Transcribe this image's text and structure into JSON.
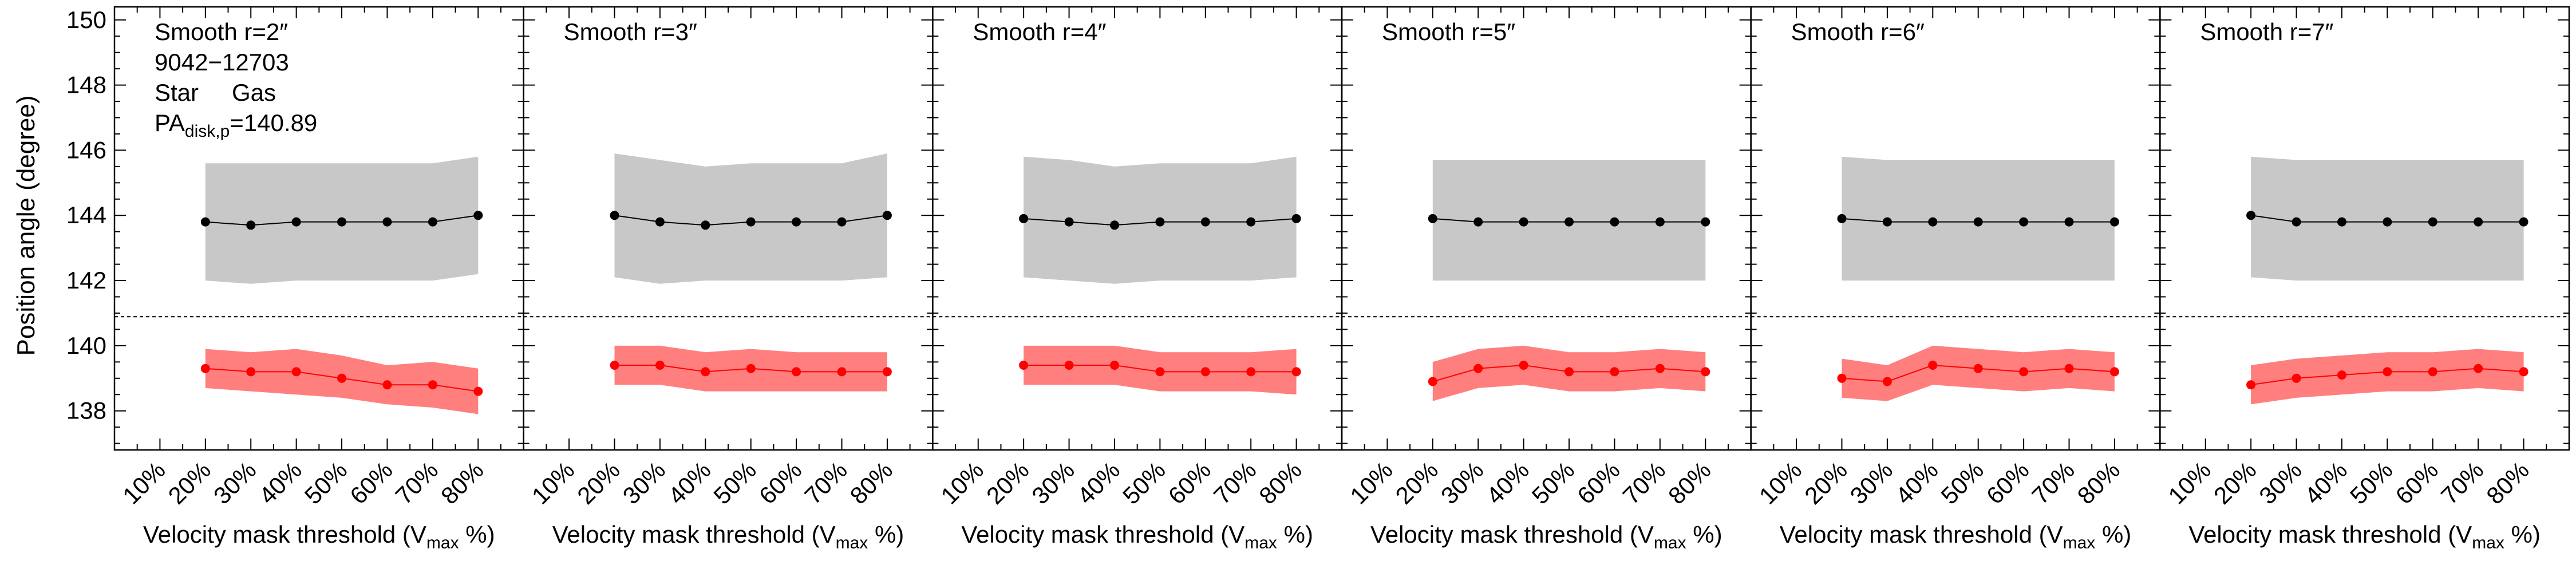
{
  "figure": {
    "ylabel": "Position angle (degree)",
    "xlabel_main": "Velocity mask threshold (V",
    "xlabel_sub": "max",
    "xlabel_tail": " %)",
    "legend": {
      "id_text": "9042−12703",
      "star_label": "Star",
      "gas_label": "Gas",
      "pa_main": "PA",
      "pa_sub": "disk,p",
      "pa_value": "=140.89"
    },
    "colors": {
      "star_band": "#c8c8c8",
      "star_line": "#000000",
      "gas_band": "#ff7f7f",
      "gas_line": "#ff0000",
      "gas_text": "#ff0000",
      "reference_line": "#000000"
    }
  },
  "chart_data": [
    {
      "type": "line",
      "title": "Smooth r=2″",
      "x_tick_labels": [
        "10%",
        "20%",
        "30%",
        "40%",
        "50%",
        "60%",
        "70%",
        "80%"
      ],
      "x": [
        20,
        30,
        40,
        50,
        60,
        70,
        80
      ],
      "xlim": [
        0,
        90
      ],
      "ylim": [
        136.8,
        150.4
      ],
      "y_ticks": [
        138,
        140,
        142,
        144,
        146,
        148,
        150
      ],
      "reference_line": 140.89,
      "series": [
        {
          "name": "Star",
          "values": [
            143.8,
            143.7,
            143.8,
            143.8,
            143.8,
            143.8,
            144.0
          ],
          "band_low": [
            142.0,
            141.9,
            142.0,
            142.0,
            142.0,
            142.0,
            142.2
          ],
          "band_high": [
            145.6,
            145.6,
            145.6,
            145.6,
            145.6,
            145.6,
            145.8
          ]
        },
        {
          "name": "Gas",
          "values": [
            139.3,
            139.2,
            139.2,
            139.0,
            138.8,
            138.8,
            138.6
          ],
          "band_low": [
            138.7,
            138.6,
            138.5,
            138.4,
            138.2,
            138.1,
            137.9
          ],
          "band_high": [
            139.9,
            139.8,
            139.9,
            139.7,
            139.4,
            139.5,
            139.3
          ]
        }
      ]
    },
    {
      "type": "line",
      "title": "Smooth r=3″",
      "x_tick_labels": [
        "10%",
        "20%",
        "30%",
        "40%",
        "50%",
        "60%",
        "70%",
        "80%"
      ],
      "x": [
        20,
        30,
        40,
        50,
        60,
        70,
        80
      ],
      "xlim": [
        0,
        90
      ],
      "ylim": [
        136.8,
        150.4
      ],
      "y_ticks": [
        138,
        140,
        142,
        144,
        146,
        148,
        150
      ],
      "reference_line": 140.89,
      "series": [
        {
          "name": "Star",
          "values": [
            144.0,
            143.8,
            143.7,
            143.8,
            143.8,
            143.8,
            144.0
          ],
          "band_low": [
            142.1,
            141.9,
            142.0,
            142.0,
            142.0,
            142.0,
            142.1
          ],
          "band_high": [
            145.9,
            145.7,
            145.5,
            145.6,
            145.6,
            145.6,
            145.9
          ]
        },
        {
          "name": "Gas",
          "values": [
            139.4,
            139.4,
            139.2,
            139.3,
            139.2,
            139.2,
            139.2
          ],
          "band_low": [
            138.8,
            138.8,
            138.6,
            138.6,
            138.6,
            138.6,
            138.6
          ],
          "band_high": [
            140.0,
            140.0,
            139.8,
            139.9,
            139.8,
            139.8,
            139.8
          ]
        }
      ]
    },
    {
      "type": "line",
      "title": "Smooth r=4″",
      "x_tick_labels": [
        "10%",
        "20%",
        "30%",
        "40%",
        "50%",
        "60%",
        "70%",
        "80%"
      ],
      "x": [
        20,
        30,
        40,
        50,
        60,
        70,
        80
      ],
      "xlim": [
        0,
        90
      ],
      "ylim": [
        136.8,
        150.4
      ],
      "y_ticks": [
        138,
        140,
        142,
        144,
        146,
        148,
        150
      ],
      "reference_line": 140.89,
      "series": [
        {
          "name": "Star",
          "values": [
            143.9,
            143.8,
            143.7,
            143.8,
            143.8,
            143.8,
            143.9
          ],
          "band_low": [
            142.1,
            142.0,
            141.9,
            142.0,
            142.0,
            142.0,
            142.1
          ],
          "band_high": [
            145.8,
            145.7,
            145.5,
            145.6,
            145.6,
            145.6,
            145.8
          ]
        },
        {
          "name": "Gas",
          "values": [
            139.4,
            139.4,
            139.4,
            139.2,
            139.2,
            139.2,
            139.2
          ],
          "band_low": [
            138.8,
            138.8,
            138.8,
            138.6,
            138.6,
            138.6,
            138.5
          ],
          "band_high": [
            140.0,
            140.0,
            140.0,
            139.8,
            139.8,
            139.8,
            139.9
          ]
        }
      ]
    },
    {
      "type": "line",
      "title": "Smooth r=5″",
      "x_tick_labels": [
        "10%",
        "20%",
        "30%",
        "40%",
        "50%",
        "60%",
        "70%",
        "80%"
      ],
      "x": [
        20,
        30,
        40,
        50,
        60,
        70,
        80
      ],
      "xlim": [
        0,
        90
      ],
      "ylim": [
        136.8,
        150.4
      ],
      "y_ticks": [
        138,
        140,
        142,
        144,
        146,
        148,
        150
      ],
      "reference_line": 140.89,
      "series": [
        {
          "name": "Star",
          "values": [
            143.9,
            143.8,
            143.8,
            143.8,
            143.8,
            143.8,
            143.8
          ],
          "band_low": [
            142.0,
            142.0,
            142.0,
            142.0,
            142.0,
            142.0,
            142.0
          ],
          "band_high": [
            145.7,
            145.7,
            145.7,
            145.7,
            145.7,
            145.7,
            145.7
          ]
        },
        {
          "name": "Gas",
          "values": [
            138.9,
            139.3,
            139.4,
            139.2,
            139.2,
            139.3,
            139.2
          ],
          "band_low": [
            138.3,
            138.7,
            138.8,
            138.6,
            138.6,
            138.7,
            138.6
          ],
          "band_high": [
            139.5,
            139.9,
            140.0,
            139.8,
            139.8,
            139.9,
            139.8
          ]
        }
      ]
    },
    {
      "type": "line",
      "title": "Smooth r=6″",
      "x_tick_labels": [
        "10%",
        "20%",
        "30%",
        "40%",
        "50%",
        "60%",
        "70%",
        "80%"
      ],
      "x": [
        20,
        30,
        40,
        50,
        60,
        70,
        80
      ],
      "xlim": [
        0,
        90
      ],
      "ylim": [
        136.8,
        150.4
      ],
      "y_ticks": [
        138,
        140,
        142,
        144,
        146,
        148,
        150
      ],
      "reference_line": 140.89,
      "series": [
        {
          "name": "Star",
          "values": [
            143.9,
            143.8,
            143.8,
            143.8,
            143.8,
            143.8,
            143.8
          ],
          "band_low": [
            142.0,
            142.0,
            142.0,
            142.0,
            142.0,
            142.0,
            142.0
          ],
          "band_high": [
            145.8,
            145.7,
            145.7,
            145.7,
            145.7,
            145.7,
            145.7
          ]
        },
        {
          "name": "Gas",
          "values": [
            139.0,
            138.9,
            139.4,
            139.3,
            139.2,
            139.3,
            139.2
          ],
          "band_low": [
            138.4,
            138.3,
            138.8,
            138.7,
            138.6,
            138.7,
            138.6
          ],
          "band_high": [
            139.6,
            139.4,
            140.0,
            139.9,
            139.8,
            139.9,
            139.8
          ]
        }
      ]
    },
    {
      "type": "line",
      "title": "Smooth r=7″",
      "x_tick_labels": [
        "10%",
        "20%",
        "30%",
        "40%",
        "50%",
        "60%",
        "70%",
        "80%"
      ],
      "x": [
        20,
        30,
        40,
        50,
        60,
        70,
        80
      ],
      "xlim": [
        0,
        90
      ],
      "ylim": [
        136.8,
        150.4
      ],
      "y_ticks": [
        138,
        140,
        142,
        144,
        146,
        148,
        150
      ],
      "reference_line": 140.89,
      "series": [
        {
          "name": "Star",
          "values": [
            144.0,
            143.8,
            143.8,
            143.8,
            143.8,
            143.8,
            143.8
          ],
          "band_low": [
            142.1,
            142.0,
            142.0,
            142.0,
            142.0,
            142.0,
            142.0
          ],
          "band_high": [
            145.8,
            145.7,
            145.7,
            145.7,
            145.7,
            145.7,
            145.7
          ]
        },
        {
          "name": "Gas",
          "values": [
            138.8,
            139.0,
            139.1,
            139.2,
            139.2,
            139.3,
            139.2
          ],
          "band_low": [
            138.2,
            138.4,
            138.5,
            138.6,
            138.6,
            138.7,
            138.6
          ],
          "band_high": [
            139.4,
            139.6,
            139.7,
            139.8,
            139.8,
            139.9,
            139.8
          ]
        }
      ]
    }
  ]
}
